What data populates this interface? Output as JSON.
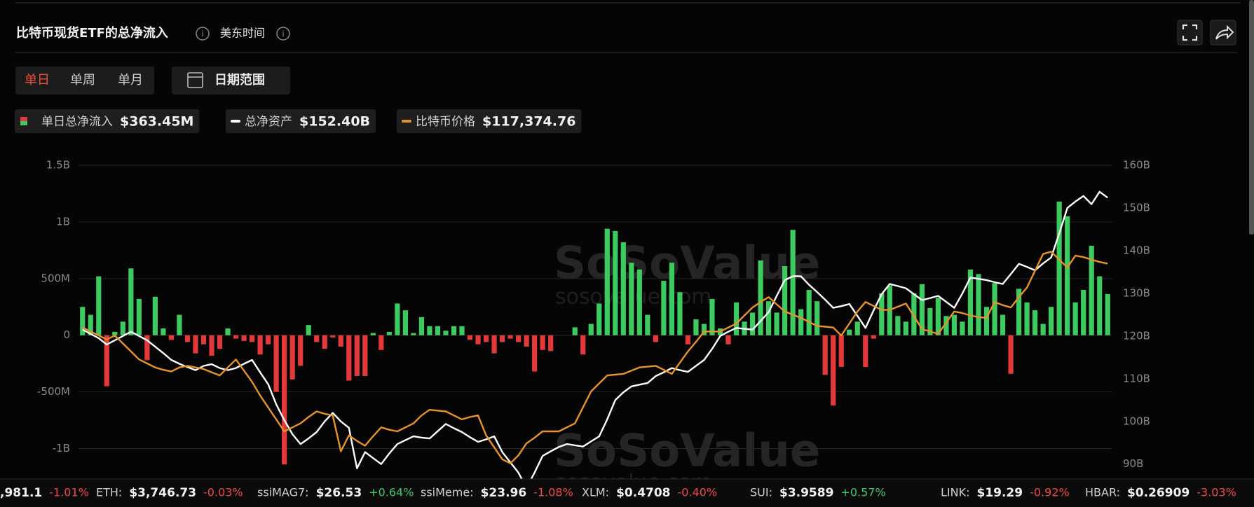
{
  "header": {
    "title": "比特币现货ETF的总净流入",
    "timezone": "美东时间"
  },
  "tabs": [
    "单日",
    "单周",
    "单月"
  ],
  "active_tab": 0,
  "date_button": "日期范围",
  "legend": [
    {
      "name": "单日总净流入",
      "value": "$363.45M"
    },
    {
      "name": "总净资产",
      "value": "$152.40B"
    },
    {
      "name": "比特币价格",
      "value": "$117,374.76"
    }
  ],
  "chart_data": {
    "type": "bar",
    "watermark": "SoSoValue",
    "watermark_url": "sosovalue.com",
    "ylim": [
      -1250000000.0,
      1500000000.0
    ],
    "yticks": [
      {
        "value": 1500000000.0,
        "label": "1.5B"
      },
      {
        "value": 1000000000.0,
        "label": "1B"
      },
      {
        "value": 500000000.0,
        "label": "500M"
      },
      0,
      {
        "value": -500000000.0,
        "label": "-500M"
      },
      {
        "value": -1000000000.0,
        "label": "-1B"
      }
    ],
    "y2lim": [
      87000000000.0,
      160000000000.0
    ],
    "y2ticks": [
      {
        "value": 160000000000.0,
        "label": "160B"
      },
      {
        "value": 150000000000.0,
        "label": "150B"
      },
      {
        "value": 140000000000.0,
        "label": "140B"
      },
      {
        "value": 130000000000.0,
        "label": "130B"
      },
      {
        "value": 120000000000.0,
        "label": "120B"
      },
      {
        "value": 110000000000.0,
        "label": "110B"
      },
      {
        "value": 100000000000.0,
        "label": "100B"
      },
      {
        "value": 90000000000.0,
        "label": "90B"
      }
    ],
    "y3lim": [
      73700,
      137500
    ],
    "grid": true,
    "series": [
      {
        "name": "单日总净流入",
        "type": "bar",
        "positive_color": "#3ccb5f",
        "negative_color": "#e5383b",
        "values": [
          250000000.0,
          180000000.0,
          520000000.0,
          -450000000.0,
          30000000.0,
          120000000.0,
          590000000.0,
          320000000.0,
          -220000000.0,
          340000000.0,
          60000000.0,
          -40000000.0,
          180000000.0,
          -60000000.0,
          -160000000.0,
          -80000000.0,
          -180000000.0,
          -120000000.0,
          60000000.0,
          -30000000.0,
          -50000000.0,
          -60000000.0,
          -170000000.0,
          -80000000.0,
          -500000000.0,
          -1140000000.0,
          -390000000.0,
          -270000000.0,
          90000000.0,
          -60000000.0,
          -120000000.0,
          -20000000.0,
          -100000000.0,
          -400000000.0,
          -360000000.0,
          -360000000.0,
          20000000.0,
          -130000000.0,
          30000000.0,
          280000000.0,
          220000000.0,
          20000000.0,
          160000000.0,
          80000000.0,
          80000000.0,
          40000000.0,
          80000000.0,
          80000000.0,
          -40000000.0,
          -80000000.0,
          -60000000.0,
          -160000000.0,
          -60000000.0,
          -30000000.0,
          -60000000.0,
          -100000000.0,
          -320000000.0,
          -130000000.0,
          -140000000.0,
          0,
          0,
          70000000.0,
          -170000000.0,
          100000000.0,
          280000000.0,
          940000000.0,
          920000000.0,
          820000000.0,
          640000000.0,
          580000000.0,
          180000000.0,
          -60000000.0,
          480000000.0,
          640000000.0,
          380000000.0,
          -80000000.0,
          140000000.0,
          100000000.0,
          320000000.0,
          60000000.0,
          -80000000.0,
          290000000.0,
          120000000.0,
          200000000.0,
          660000000.0,
          300000000.0,
          200000000.0,
          610000000.0,
          930000000.0,
          230000000.0,
          400000000.0,
          300000000.0,
          -350000000.0,
          -620000000.0,
          -280000000.0,
          50000000.0,
          120000000.0,
          -280000000.0,
          -30000000.0,
          370000000.0,
          440000000.0,
          170000000.0,
          120000000.0,
          370000000.0,
          450000000.0,
          240000000.0,
          330000000.0,
          170000000.0,
          180000000.0,
          120000000.0,
          580000000.0,
          540000000.0,
          250000000.0,
          460000000.0,
          180000000.0,
          -340000000.0,
          410000000.0,
          290000000.0,
          220000000.0,
          100000000.0,
          250000000.0,
          1180000000.0,
          1050000000.0,
          290000000.0,
          400000000.0,
          790000000.0,
          520000000.0,
          363450000.0
        ]
      },
      {
        "name": "总净资产",
        "type": "line",
        "axis": "y2",
        "color": "#ffffff",
        "values": [
          121500000000.0,
          120500000000.0,
          119500000000.0,
          118000000000.0,
          119000000000.0,
          120000000000.0,
          121000000000.0,
          120000000000.0,
          119000000000.0,
          117500000000.0,
          116000000000.0,
          114400000000.0,
          113500000000.0,
          112700000000.0,
          112000000000.0,
          113000000000.0,
          113400000000.0,
          112500000000.0,
          112000000000.0,
          112500000000.0,
          113500000000.0,
          114400000000.0,
          111500000000.0,
          108700000000.0,
          104000000000.0,
          100300000000.0,
          97000000000.0,
          94700000000.0,
          96000000000.0,
          97500000000.0,
          100000000000.0,
          102000000000.0,
          100000000000.0,
          98500000000.0,
          89000000000.0,
          92800000000.0,
          91400000000.0,
          90000000000.0,
          92500000000.0,
          94700000000.0,
          95600000000.0,
          96500000000.0,
          96200000000.0,
          96000000000.0,
          97700000000.0,
          99400000000.0,
          98400000000.0,
          97500000000.0,
          96300000000.0,
          95200000000.0,
          95800000000.0,
          96500000000.0,
          92800000000.0,
          90400000000.0,
          88000000000.0,
          84400000000.0,
          88000000000.0,
          91900000000.0,
          93000000000.0,
          94000000000.0,
          94700000000.0,
          94400000000.0,
          94100000000.0,
          95300000000.0,
          96500000000.0,
          100500000000.0,
          105000000000.0,
          106800000000.0,
          108200000000.0,
          108600000000.0,
          109000000000.0,
          110600000000.0,
          111500000000.0,
          112500000000.0,
          112000000000.0,
          111600000000.0,
          113000000000.0,
          114400000000.0,
          117000000000.0,
          120000000000.0,
          121000000000.0,
          121900000000.0,
          121700000000.0,
          121500000000.0,
          123500000000.0,
          125600000000.0,
          129400000000.0,
          133100000000.0,
          134000000000.0,
          134000000000.0,
          132000000000.0,
          130300000000.0,
          128500000000.0,
          126600000000.0,
          127000000000.0,
          127500000000.0,
          124700000000.0,
          121900000000.0,
          126000000000.0,
          129800000000.0,
          132200000000.0,
          131700000000.0,
          131200000000.0,
          129800000000.0,
          128400000000.0,
          128900000000.0,
          129400000000.0,
          128000000000.0,
          126600000000.0,
          130000000000.0,
          133700000000.0,
          133400000000.0,
          133100000000.0,
          132600000000.0,
          132200000000.0,
          134500000000.0,
          136900000000.0,
          136200000000.0,
          135400000000.0,
          137000000000.0,
          138400000000.0,
          144000000000.0,
          150000000000.0,
          151500000000.0,
          152800000000.0,
          150900000000.0,
          153800000000.0,
          152400000000.0
        ]
      },
      {
        "name": "比特币价格",
        "type": "line",
        "axis": "y3",
        "color": "#e8922a",
        "values": [
          104286,
          103468,
          102650,
          101832,
          102650,
          101014,
          99378,
          97742,
          96924,
          96106,
          95615,
          95288,
          96106,
          96433,
          96106,
          95779,
          95124,
          94470,
          96106,
          97742,
          95452,
          93161,
          90380,
          87926,
          85472,
          83018,
          83836,
          84654,
          85963,
          87108,
          86617,
          86290,
          78928,
          82200,
          81055,
          80073,
          82036,
          83836,
          83345,
          83018,
          83836,
          84654,
          86290,
          87435,
          87272,
          87108,
          86290,
          85472,
          85963,
          86290,
          82200,
          79746,
          77292,
          76474,
          78110,
          80564,
          81709,
          83018,
          83018,
          83018,
          83836,
          84654,
          87926,
          91198,
          92834,
          94470,
          94634,
          94797,
          95452,
          96106,
          96270,
          96433,
          95615,
          94797,
          97088,
          99378,
          101341,
          103468,
          103468,
          103468,
          104286,
          105104,
          106740,
          108376,
          109521,
          110503,
          109030,
          107558,
          106904,
          106249,
          105431,
          104613,
          104450,
          104286,
          102650,
          105104,
          107558,
          109521,
          108703,
          107885,
          107885,
          108540,
          109194,
          106576,
          103959,
          103468,
          102977,
          105268,
          107558,
          107231,
          106740,
          106413,
          106249,
          109521,
          108867,
          108376,
          110503,
          112466,
          115902,
          119337,
          119828,
          118192,
          116556,
          119010,
          118683,
          118192,
          117701,
          117374.76
        ]
      }
    ]
  },
  "ticker": [
    {
      "label": "",
      "price": ",981.1",
      "change": "-1.01%"
    },
    {
      "label": "ETH:",
      "price": "$3,746.73",
      "change": "-0.03%"
    },
    {
      "label": "ssiMAG7:",
      "price": "$26.53",
      "change": "+0.64%"
    },
    {
      "label": "ssiMeme:",
      "price": "$23.96",
      "change": "-1.08%"
    },
    {
      "label": "XLM:",
      "price": "$0.4708",
      "change": "-0.40%"
    },
    {
      "label": "SUI:",
      "price": "$3.9589",
      "change": "+0.57%"
    },
    {
      "label": "LINK:",
      "price": "$19.29",
      "change": "-0.92%"
    },
    {
      "label": "HBAR:",
      "price": "$0.26909",
      "change": "-3.03%"
    }
  ]
}
